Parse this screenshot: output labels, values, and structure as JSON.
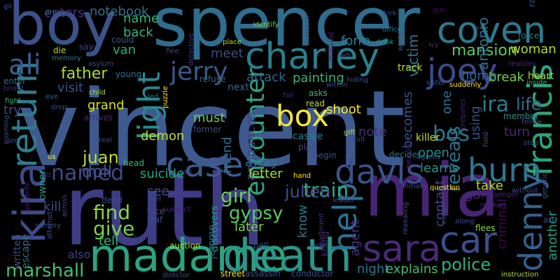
{
  "word_cloud": {
    "background": "#000000",
    "palette": [
      "#482878",
      "#3e4989",
      "#31688e",
      "#26828e",
      "#1f9e89",
      "#35b779",
      "#6ece58",
      "#b5de2b",
      "#fde725"
    ],
    "words": [
      {
        "text": "vincent",
        "color": "#3e5a8f"
      },
      {
        "text": "ruth",
        "color": "#3f3c86"
      },
      {
        "text": "spencer",
        "color": "#2f6d8e"
      },
      {
        "text": "boy",
        "color": "#3b5289"
      },
      {
        "text": "mia",
        "color": "#482473"
      },
      {
        "text": "madame",
        "color": "#2aa382"
      },
      {
        "text": "death",
        "color": "#2b958a"
      },
      {
        "text": "kira",
        "color": "#3e4a8a"
      },
      {
        "text": "charley",
        "color": "#2b7f8e"
      },
      {
        "text": "coven",
        "color": "#2c7a8e"
      },
      {
        "text": "sara",
        "color": "#4a2a77"
      },
      {
        "text": "car",
        "color": "#3a4f8c"
      },
      {
        "text": "joey",
        "color": "#3b4b8a"
      },
      {
        "text": "francis",
        "color": "#2ea37f"
      },
      {
        "text": "denny",
        "color": "#345f8e"
      },
      {
        "text": "return",
        "color": "#2f7c8e"
      },
      {
        "text": "davis",
        "color": "#3b5289"
      },
      {
        "text": "burn",
        "color": "#30768e"
      },
      {
        "text": "case",
        "color": "#3c5a8b"
      },
      {
        "text": "box",
        "color": "#f2e53b"
      },
      {
        "text": "help",
        "color": "#2d6f8e"
      },
      {
        "text": "ali",
        "color": "#3a5c8c"
      },
      {
        "text": "light",
        "color": "#2a8a8d"
      },
      {
        "text": "jerry",
        "color": "#3a598b"
      },
      {
        "text": "encounter",
        "color": "#2fa183"
      },
      {
        "text": "mansion",
        "color": "#5ec962"
      },
      {
        "text": "named",
        "color": "#3e4a89"
      },
      {
        "text": "father",
        "color": "#aadc32"
      },
      {
        "text": "train",
        "color": "#33a985"
      },
      {
        "text": "girl",
        "color": "#6bcd59"
      },
      {
        "text": "police",
        "color": "#2ab07f"
      },
      {
        "text": "gypsy",
        "color": "#58c765"
      },
      {
        "text": "find",
        "color": "#86d549"
      },
      {
        "text": "give",
        "color": "#7ad151"
      },
      {
        "text": "marshall",
        "color": "#44bf70"
      },
      {
        "text": "reveals",
        "color": "#2c738e"
      },
      {
        "text": "antonio",
        "color": "#2e6e8e"
      },
      {
        "text": "victim",
        "color": "#2a798e"
      },
      {
        "text": "julien",
        "color": "#3e4c8a"
      },
      {
        "text": "bos",
        "color": "#2a788e"
      },
      {
        "text": "ira",
        "color": "#287d8e"
      },
      {
        "text": "life",
        "color": "#2d718e"
      },
      {
        "text": "doll",
        "color": "#3b528b"
      },
      {
        "text": "juan",
        "color": "#bddf26"
      },
      {
        "text": "shoot",
        "color": "#fde725"
      },
      {
        "text": "notebook",
        "color": "#2e6f8e"
      },
      {
        "text": "enters",
        "color": "#46327e"
      },
      {
        "text": "name",
        "color": "#35b779"
      },
      {
        "text": "back",
        "color": "#35b779"
      },
      {
        "text": "form",
        "color": "#26828e"
      },
      {
        "text": "woman",
        "color": "#b5de2b"
      },
      {
        "text": "van",
        "color": "#29af7f"
      },
      {
        "text": "painting",
        "color": "#31b57b"
      },
      {
        "text": "attack",
        "color": "#31688e"
      },
      {
        "text": "meet",
        "color": "#3e4a89"
      },
      {
        "text": "break",
        "color": "#7ad151"
      },
      {
        "text": "home",
        "color": "#31688e"
      },
      {
        "text": "visit",
        "color": "#3b528b"
      },
      {
        "text": "grand",
        "color": "#d8e219"
      },
      {
        "text": "try",
        "color": "#3e4a89"
      },
      {
        "text": "demon",
        "color": "#c2df23"
      },
      {
        "text": "must",
        "color": "#6ece58"
      },
      {
        "text": "announces",
        "color": "#433e85"
      },
      {
        "text": "friend",
        "color": "#2c728e"
      },
      {
        "text": "suicide",
        "color": "#22a884"
      },
      {
        "text": "away",
        "color": "#2a788e"
      },
      {
        "text": "letter",
        "color": "#a0da39"
      },
      {
        "text": "note",
        "color": "#46307e"
      },
      {
        "text": "becomes",
        "color": "#3b528b"
      },
      {
        "text": "using",
        "color": "#3b528b"
      },
      {
        "text": "one",
        "color": "#2d708e"
      },
      {
        "text": "turn",
        "color": "#482878"
      },
      {
        "text": "open",
        "color": "#21918c"
      },
      {
        "text": "learns",
        "color": "#21918c"
      },
      {
        "text": "contact",
        "color": "#3e4989"
      },
      {
        "text": "know",
        "color": "#2a788e"
      },
      {
        "text": "agent",
        "color": "#46327e"
      },
      {
        "text": "night",
        "color": "#2a788e"
      },
      {
        "text": "explains",
        "color": "#40bd72"
      },
      {
        "text": "assassin",
        "color": "#3b528b"
      },
      {
        "text": "conductor",
        "color": "#3b528b"
      },
      {
        "text": "criminal",
        "color": "#44015a"
      },
      {
        "text": "another",
        "color": "#1fa088"
      },
      {
        "text": "flees",
        "color": "#8fd744"
      },
      {
        "text": "go",
        "color": "#482878"
      },
      {
        "text": "take",
        "color": "#b5de2b"
      },
      {
        "text": "kill",
        "color": "#3e4a89"
      },
      {
        "text": "tell",
        "color": "#35b779"
      },
      {
        "text": "see",
        "color": "#3b528b"
      },
      {
        "text": "later",
        "color": "#7ad151"
      },
      {
        "text": "discovers",
        "color": "#1f9e89"
      },
      {
        "text": "jerome",
        "color": "#31688e"
      },
      {
        "text": "owner",
        "color": "#1f9e89"
      },
      {
        "text": "escape",
        "color": "#2c728e"
      },
      {
        "text": "written",
        "color": "#3e4989"
      },
      {
        "text": "also",
        "color": "#433e85"
      },
      {
        "text": "auction",
        "color": "#addc30"
      },
      {
        "text": "street",
        "color": "#fde725"
      },
      {
        "text": "bell",
        "color": "#3b528b"
      },
      {
        "text": "killing",
        "color": "#46327e"
      },
      {
        "text": "killer",
        "color": "#c8e020"
      },
      {
        "text": "member",
        "color": "#21918c"
      },
      {
        "text": "heart",
        "color": "#b5de2b"
      },
      {
        "text": "realizes",
        "color": "#482878"
      },
      {
        "text": "decides",
        "color": "#2c728e"
      },
      {
        "text": "track",
        "color": "#c2df23"
      },
      {
        "text": "drink",
        "color": "#1f9e89"
      },
      {
        "text": "office",
        "color": "#2a788e"
      },
      {
        "text": "gun",
        "color": "#471164"
      },
      {
        "text": "ivy",
        "color": "#46327e"
      },
      {
        "text": "force",
        "color": "#26828e"
      },
      {
        "text": "ray",
        "color": "#3b528b"
      },
      {
        "text": "die",
        "color": "#b5de2b"
      },
      {
        "text": "say",
        "color": "#3e4a89"
      },
      {
        "text": "could",
        "color": "#3b528b"
      },
      {
        "text": "memory",
        "color": "#2a788e"
      },
      {
        "text": "asylum",
        "color": "#3e4a89"
      },
      {
        "text": "young",
        "color": "#2a788e"
      },
      {
        "text": "enter",
        "color": "#2c728e"
      },
      {
        "text": "board",
        "color": "#482878"
      },
      {
        "text": "eve",
        "color": "#31688e"
      },
      {
        "text": "drop",
        "color": "#3e4a89"
      },
      {
        "text": "fight",
        "color": "#35b779"
      },
      {
        "text": "drug",
        "color": "#31688e"
      },
      {
        "text": "gil",
        "color": "#3b528b"
      },
      {
        "text": "identify",
        "color": "#7ad151"
      },
      {
        "text": "however",
        "color": "#3b528b"
      },
      {
        "text": "revealed",
        "color": "#482878"
      },
      {
        "text": "detective",
        "color": "#46327e"
      },
      {
        "text": "place",
        "color": "#b5de2b"
      },
      {
        "text": "flee",
        "color": "#3e4a89"
      },
      {
        "text": "refuse",
        "color": "#31688e"
      },
      {
        "text": "next",
        "color": "#31688e"
      },
      {
        "text": "led",
        "color": "#2a788e"
      },
      {
        "text": "puzzle",
        "color": "#fde725"
      },
      {
        "text": "arrives",
        "color": "#482878"
      },
      {
        "text": "real",
        "color": "#3e4a89"
      },
      {
        "text": "fall",
        "color": "#482878"
      },
      {
        "text": "read",
        "color": "#c2df23"
      },
      {
        "text": "asks",
        "color": "#35b779"
      },
      {
        "text": "former",
        "color": "#3e4a89"
      },
      {
        "text": "cassie",
        "color": "#26828e"
      },
      {
        "text": "plan",
        "color": "#3e4a89"
      },
      {
        "text": "begin",
        "color": "#3b528b"
      },
      {
        "text": "gift",
        "color": "#b5de2b"
      },
      {
        "text": "cult",
        "color": "#3e4a89"
      },
      {
        "text": "hearing",
        "color": "#482878"
      },
      {
        "text": "agrees",
        "color": "#3b528b"
      },
      {
        "text": "initially",
        "color": "#3e4a89"
      },
      {
        "text": "question",
        "color": "#fde725"
      },
      {
        "text": "passenger",
        "color": "#482878"
      },
      {
        "text": "without",
        "color": "#3e4a89"
      },
      {
        "text": "genetic",
        "color": "#3b528b"
      },
      {
        "text": "hold",
        "color": "#3b528b"
      },
      {
        "text": "stop",
        "color": "#3e4a89"
      },
      {
        "text": "sister",
        "color": "#3b528b"
      },
      {
        "text": "suddenly",
        "color": "#fde725"
      },
      {
        "text": "inside",
        "color": "#35b779"
      },
      {
        "text": "art",
        "color": "#3e4a89"
      },
      {
        "text": "manages",
        "color": "#482878"
      },
      {
        "text": "along",
        "color": "#3e4a89"
      },
      {
        "text": "thought",
        "color": "#3b528b"
      },
      {
        "text": "revealing",
        "color": "#3e4a89"
      },
      {
        "text": "instruction",
        "color": "#b5de2b"
      },
      {
        "text": "director",
        "color": "#3e4a89"
      },
      {
        "text": "raider",
        "color": "#3b528b"
      },
      {
        "text": "leader",
        "color": "#3e4a89"
      },
      {
        "text": "apartment",
        "color": "#46327e"
      },
      {
        "text": "hand",
        "color": "#fde725"
      },
      {
        "text": "suspect",
        "color": "#482878"
      },
      {
        "text": "hell",
        "color": "#3e4a89"
      },
      {
        "text": "face",
        "color": "#3b528b"
      },
      {
        "text": "leaf",
        "color": "#3b528b"
      },
      {
        "text": "dead",
        "color": "#3e4a89"
      },
      {
        "text": "head",
        "color": "#35b779"
      },
      {
        "text": "cap",
        "color": "#3e4a89"
      },
      {
        "text": "sin",
        "color": "#3e4a89"
      },
      {
        "text": "get",
        "color": "#3b528b"
      },
      {
        "text": "soul",
        "color": "#3e4a89"
      },
      {
        "text": "us",
        "color": "#fde725"
      },
      {
        "text": "ed",
        "color": "#482878"
      },
      {
        "text": "arm",
        "color": "#3e4a89"
      },
      {
        "text": "morning",
        "color": "#3b528b"
      },
      {
        "text": "across",
        "color": "#3e4a89"
      },
      {
        "text": "apparently",
        "color": "#482878"
      },
      {
        "text": "sammy",
        "color": "#3b528b"
      },
      {
        "text": "attempt",
        "color": "#3e4a89"
      },
      {
        "text": "hiding",
        "color": "#3b528b"
      },
      {
        "text": "within",
        "color": "#3e4a89"
      },
      {
        "text": "left",
        "color": "#3e4a89"
      },
      {
        "text": "world",
        "color": "#3b528b"
      },
      {
        "text": "child",
        "color": "#b5de2b"
      },
      {
        "text": "fellow",
        "color": "#3e4a89"
      },
      {
        "text": "prepares",
        "color": "#482878"
      },
      {
        "text": "kirk",
        "color": "#3e4a89"
      }
    ]
  }
}
